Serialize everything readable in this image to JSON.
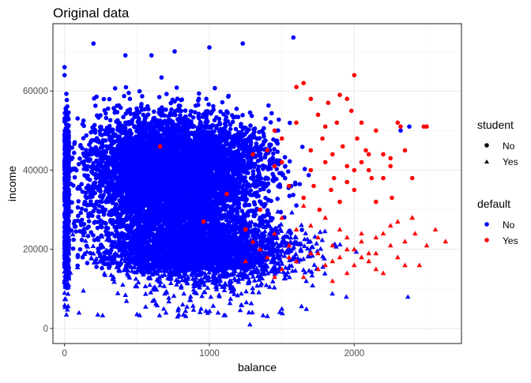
{
  "chart_data": {
    "type": "scatter",
    "title": "Original data",
    "xlabel": "balance",
    "ylabel": "income",
    "xlim": [
      -80,
      2740
    ],
    "ylim": [
      -3800,
      77000
    ],
    "x_ticks": [
      0,
      1000,
      2000
    ],
    "x_tick_labels": [
      "0",
      "1000",
      "2000"
    ],
    "y_ticks": [
      0,
      20000,
      40000,
      60000
    ],
    "y_tick_labels": [
      "0",
      "20000",
      "40000",
      "60000"
    ],
    "grid": true,
    "legend_position": "right",
    "shape_legend": {
      "title": "student",
      "entries": [
        {
          "label": "No",
          "shape": "circle"
        },
        {
          "label": "Yes",
          "shape": "triangle"
        }
      ]
    },
    "color_legend": {
      "title": "default",
      "entries": [
        {
          "label": "No",
          "color": "#0000FF"
        },
        {
          "label": "Yes",
          "color": "#FF0000"
        }
      ]
    },
    "colors": {
      "No": "#0000FF",
      "Yes": "#FF0000"
    },
    "series": [
      {
        "default": "Yes",
        "student": "No",
        "points": [
          [
            1600,
            61000
          ],
          [
            1650,
            62000
          ],
          [
            1700,
            58000
          ],
          [
            1750,
            54000
          ],
          [
            1780,
            48000
          ],
          [
            1820,
            57000
          ],
          [
            1850,
            44000
          ],
          [
            1880,
            52000
          ],
          [
            1900,
            59000
          ],
          [
            1920,
            46000
          ],
          [
            1950,
            41000
          ],
          [
            1980,
            55000
          ],
          [
            2000,
            64000
          ],
          [
            2020,
            48000
          ],
          [
            2050,
            52000
          ],
          [
            2080,
            45000
          ],
          [
            2100,
            40000
          ],
          [
            2120,
            38000
          ],
          [
            2150,
            50000
          ],
          [
            2200,
            44000
          ],
          [
            2250,
            43000
          ],
          [
            2300,
            52000
          ],
          [
            2320,
            51000
          ],
          [
            2350,
            45000
          ],
          [
            2400,
            38000
          ],
          [
            2480,
            51000
          ],
          [
            2500,
            51000
          ],
          [
            1350,
            30000
          ],
          [
            1400,
            45000
          ],
          [
            1450,
            50000
          ],
          [
            1500,
            42000
          ],
          [
            1550,
            36000
          ],
          [
            1600,
            52000
          ],
          [
            1650,
            33000
          ],
          [
            1700,
            40000
          ],
          [
            1720,
            36000
          ],
          [
            1760,
            30000
          ],
          [
            1800,
            42000
          ],
          [
            1840,
            35000
          ],
          [
            1860,
            38000
          ],
          [
            1900,
            32000
          ],
          [
            1950,
            37000
          ],
          [
            2000,
            35000
          ],
          [
            2050,
            42000
          ],
          [
            2100,
            44000
          ],
          [
            2150,
            32000
          ],
          [
            2200,
            38000
          ],
          [
            2260,
            33000
          ],
          [
            660,
            46000
          ],
          [
            960,
            27000
          ],
          [
            1120,
            34000
          ],
          [
            1300,
            44000
          ],
          [
            1250,
            25000
          ],
          [
            1450,
            41000
          ],
          [
            1500,
            48000
          ],
          [
            1700,
            45000
          ],
          [
            1800,
            51000
          ],
          [
            1950,
            58000
          ],
          [
            2000,
            40000
          ],
          [
            2250,
            41000
          ]
        ]
      },
      {
        "default": "Yes",
        "student": "Yes",
        "points": [
          [
            1250,
            17000
          ],
          [
            1300,
            22000
          ],
          [
            1350,
            20000
          ],
          [
            1400,
            18000
          ],
          [
            1450,
            24000
          ],
          [
            1500,
            15000
          ],
          [
            1550,
            21000
          ],
          [
            1600,
            17000
          ],
          [
            1650,
            13000
          ],
          [
            1700,
            19000
          ],
          [
            1750,
            23000
          ],
          [
            1800,
            16000
          ],
          [
            1850,
            21000
          ],
          [
            1900,
            18000
          ],
          [
            1950,
            14000
          ],
          [
            2000,
            20000
          ],
          [
            2050,
            22000
          ],
          [
            2100,
            17000
          ],
          [
            2150,
            19000
          ],
          [
            2200,
            24000
          ],
          [
            2250,
            21000
          ],
          [
            2300,
            18000
          ],
          [
            2350,
            22000
          ],
          [
            2400,
            28000
          ],
          [
            2450,
            16000
          ],
          [
            2500,
            21000
          ],
          [
            2560,
            25000
          ],
          [
            2630,
            22000
          ],
          [
            1700,
            26000
          ],
          [
            1750,
            15000
          ],
          [
            1800,
            28000
          ],
          [
            1850,
            12000
          ],
          [
            1900,
            25000
          ],
          [
            1950,
            20000
          ],
          [
            2000,
            16000
          ],
          [
            2050,
            24000
          ],
          [
            2100,
            19000
          ],
          [
            2150,
            23000
          ],
          [
            2200,
            14000
          ],
          [
            2300,
            27000
          ],
          [
            1500,
            28000
          ],
          [
            1600,
            25000
          ],
          [
            1650,
            31000
          ],
          [
            1450,
            13000
          ],
          [
            1550,
            18000
          ],
          [
            1750,
            19000
          ],
          [
            1850,
            17000
          ],
          [
            1950,
            23000
          ],
          [
            2050,
            18000
          ],
          [
            2150,
            15000
          ],
          [
            2250,
            26000
          ],
          [
            2350,
            16000
          ],
          [
            2420,
            24000
          ],
          [
            2400,
            28000
          ]
        ]
      },
      {
        "default": "No",
        "student": "No",
        "region": {
          "x": [
            0,
            2380
          ],
          "y": [
            12000,
            73500
          ],
          "approx_count": 7000
        },
        "notable_points": [
          [
            200,
            72000
          ],
          [
            1230,
            72000
          ],
          [
            1580,
            73500
          ],
          [
            1000,
            71000
          ],
          [
            760,
            70000
          ],
          [
            420,
            69000
          ],
          [
            600,
            69000
          ],
          [
            0,
            66000
          ],
          [
            0,
            64000
          ],
          [
            2320,
            50000
          ],
          [
            2380,
            51000
          ]
        ]
      },
      {
        "default": "No",
        "student": "Yes",
        "region": {
          "x": [
            0,
            2420
          ],
          "y": [
            700,
            40000
          ],
          "approx_count": 2900
        },
        "notable_points": [
          [
            100,
            4000
          ],
          [
            230,
            3500
          ],
          [
            560,
            5500
          ],
          [
            700,
            4000
          ],
          [
            1060,
            4000
          ],
          [
            1280,
            1000
          ],
          [
            1500,
            5000
          ],
          [
            2370,
            8000
          ],
          [
            1220,
            6000
          ],
          [
            0,
            9000
          ],
          [
            0,
            12000
          ]
        ]
      }
    ]
  }
}
